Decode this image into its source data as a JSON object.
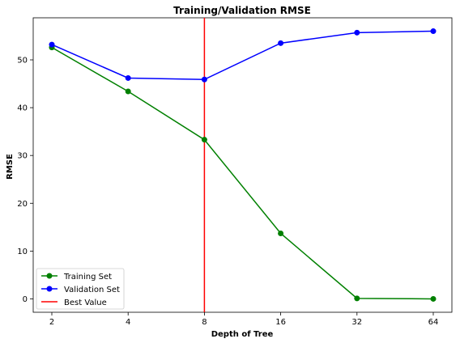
{
  "chart_data": {
    "type": "line",
    "title": "Training/Validation RMSE",
    "xlabel": "Depth of Tree",
    "ylabel": "RMSE",
    "x": [
      "2",
      "4",
      "8",
      "16",
      "32",
      "64"
    ],
    "yticks": [
      0,
      10,
      20,
      30,
      40,
      50
    ],
    "ylim": [
      -2.8,
      58.8
    ],
    "series": [
      {
        "name": "Training Set",
        "color": "#008000",
        "values": [
          52.6,
          43.4,
          33.3,
          13.7,
          0.1,
          0.0
        ]
      },
      {
        "name": "Validation Set",
        "color": "#0000ff",
        "values": [
          53.2,
          46.2,
          45.9,
          53.5,
          55.7,
          56.0
        ]
      }
    ],
    "reference_line": {
      "name": "Best Value",
      "x": "8",
      "color": "#ff0000"
    },
    "legend_position": "lower-left",
    "grid": false
  }
}
